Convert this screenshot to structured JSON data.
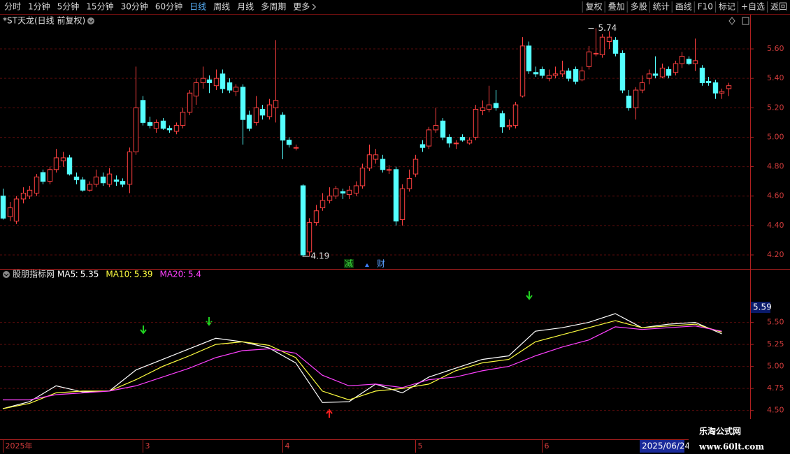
{
  "toolbar": {
    "left": [
      "分时",
      "1分钟",
      "5分钟",
      "15分钟",
      "30分钟",
      "60分钟",
      "日线",
      "周线",
      "月线",
      "多周期",
      "更多"
    ],
    "active": "日线",
    "right": [
      "复权",
      "叠加",
      "多股",
      "统计",
      "画线",
      "F10",
      "标记",
      "+自选",
      "返回"
    ]
  },
  "markers": [
    "减",
    "财"
  ],
  "date_box": "2025/06/24",
  "cursor_value": 5.59,
  "watermark": {
    "title": "乐淘公式网",
    "url": "www.60lt.com"
  },
  "chart_data": [
    {
      "type": "candlestick",
      "title": "*ST天龙(日线 前复权)",
      "up_color": "#ff4040",
      "down_color": "#54ffff",
      "open": [
        4.6,
        4.46,
        4.43,
        4.58,
        4.6,
        4.62,
        4.76,
        4.7,
        4.78,
        4.84,
        4.86,
        4.73,
        4.71,
        4.64,
        4.68,
        4.73,
        4.68,
        4.71,
        4.7,
        4.68,
        4.9,
        5.25,
        5.1,
        5.06,
        5.11,
        5.06,
        5.04,
        5.08,
        5.17,
        5.28,
        5.37,
        5.39,
        5.35,
        5.43,
        5.37,
        5.31,
        5.34,
        5.15,
        5.1,
        5.19,
        5.14,
        5.2,
        5.15,
        4.98,
        4.93,
        4.67,
        4.22,
        4.42,
        4.52,
        4.57,
        4.6,
        4.63,
        4.61,
        4.62,
        4.67,
        4.79,
        4.85,
        4.85,
        4.78,
        4.78,
        4.44,
        4.65,
        4.75,
        4.95,
        4.94,
        5.05,
        5.11,
        5.0,
        4.96,
        5.0,
        4.96,
        5.0,
        5.18,
        5.19,
        5.23,
        5.16,
        5.07,
        5.08,
        5.28,
        5.62,
        5.44,
        5.46,
        5.4,
        5.42,
        5.43,
        5.45,
        5.46,
        5.39,
        5.48,
        5.57,
        5.56,
        5.65,
        5.66,
        5.57,
        5.28,
        5.2,
        5.32,
        5.4,
        5.43,
        5.41,
        5.46,
        5.44,
        5.5,
        5.53,
        5.5,
        5.47,
        5.38,
        5.37,
        5.3,
        5.33
      ],
      "high": [
        4.65,
        4.56,
        4.6,
        4.66,
        4.67,
        4.75,
        4.78,
        4.8,
        4.92,
        4.9,
        4.88,
        4.76,
        4.73,
        4.7,
        4.78,
        4.76,
        4.79,
        4.74,
        4.72,
        4.93,
        5.48,
        5.28,
        5.14,
        5.12,
        5.13,
        5.08,
        5.1,
        5.2,
        5.32,
        5.4,
        5.48,
        5.42,
        5.46,
        5.46,
        5.4,
        5.36,
        5.36,
        5.18,
        5.28,
        5.22,
        5.26,
        5.66,
        5.17,
        5.0,
        4.95,
        4.68,
        4.45,
        4.54,
        4.62,
        4.66,
        4.67,
        4.65,
        4.67,
        4.7,
        4.82,
        4.95,
        4.92,
        4.88,
        4.81,
        4.8,
        4.68,
        4.78,
        4.88,
        4.98,
        5.07,
        5.2,
        5.13,
        5.02,
        4.98,
        5.02,
        5.0,
        5.22,
        5.25,
        5.35,
        5.32,
        5.18,
        5.12,
        5.24,
        5.68,
        5.65,
        5.48,
        5.48,
        5.46,
        5.48,
        5.52,
        5.47,
        5.48,
        5.48,
        5.62,
        5.74,
        5.7,
        5.72,
        5.68,
        5.59,
        5.32,
        5.34,
        5.42,
        5.46,
        5.55,
        5.5,
        5.48,
        5.52,
        5.58,
        5.55,
        5.67,
        5.49,
        5.41,
        5.39,
        5.33,
        5.37
      ],
      "low": [
        4.44,
        4.43,
        4.41,
        4.55,
        4.58,
        4.6,
        4.68,
        4.68,
        4.76,
        4.8,
        4.74,
        4.68,
        4.63,
        4.63,
        4.66,
        4.67,
        4.66,
        4.67,
        4.66,
        4.62,
        4.88,
        5.08,
        5.06,
        5.03,
        5.05,
        5.03,
        5.02,
        5.06,
        5.15,
        5.22,
        5.33,
        5.3,
        5.32,
        5.3,
        5.3,
        5.28,
        4.95,
        5.04,
        5.08,
        5.12,
        5.12,
        5.1,
        4.85,
        4.93,
        4.91,
        4.19,
        4.19,
        4.4,
        4.5,
        4.55,
        4.58,
        4.58,
        4.58,
        4.6,
        4.65,
        4.77,
        4.82,
        4.76,
        4.75,
        4.4,
        4.4,
        4.63,
        4.73,
        4.9,
        4.92,
        5.03,
        4.98,
        4.93,
        4.92,
        4.97,
        4.95,
        4.98,
        5.15,
        5.17,
        5.18,
        5.03,
        5.05,
        5.06,
        5.27,
        5.43,
        5.41,
        5.4,
        5.38,
        5.4,
        5.41,
        5.38,
        5.36,
        5.38,
        5.46,
        5.55,
        5.54,
        5.6,
        5.55,
        5.3,
        5.18,
        5.12,
        5.3,
        5.36,
        5.4,
        5.4,
        5.4,
        5.42,
        5.47,
        5.49,
        5.45,
        5.35,
        5.35,
        5.26,
        5.26,
        5.28
      ],
      "close": [
        4.45,
        4.52,
        4.58,
        4.62,
        4.64,
        4.73,
        4.7,
        4.78,
        4.86,
        4.86,
        4.75,
        4.71,
        4.64,
        4.68,
        4.73,
        4.69,
        4.75,
        4.7,
        4.68,
        4.9,
        5.2,
        5.1,
        5.08,
        5.1,
        5.06,
        5.05,
        5.08,
        5.17,
        5.3,
        5.37,
        5.4,
        5.37,
        5.4,
        5.33,
        5.32,
        5.34,
        5.12,
        5.06,
        5.2,
        5.15,
        5.22,
        5.25,
        4.98,
        4.95,
        4.93,
        4.2,
        4.42,
        4.5,
        4.57,
        4.6,
        4.65,
        4.62,
        4.64,
        4.67,
        4.79,
        4.88,
        4.88,
        4.78,
        4.78,
        4.43,
        4.65,
        4.72,
        4.85,
        4.93,
        5.05,
        5.08,
        5.0,
        4.96,
        4.96,
        4.98,
        4.98,
        5.19,
        5.2,
        5.22,
        5.2,
        5.07,
        5.08,
        5.22,
        5.62,
        5.45,
        5.43,
        5.42,
        5.42,
        5.43,
        5.45,
        5.4,
        5.38,
        5.45,
        5.58,
        5.57,
        5.68,
        5.68,
        5.57,
        5.32,
        5.2,
        5.32,
        5.37,
        5.43,
        5.42,
        5.47,
        5.42,
        5.5,
        5.55,
        5.5,
        5.52,
        5.37,
        5.37,
        5.3,
        5.31,
        5.35
      ],
      "max_label": 5.74,
      "min_label": 4.19,
      "xlim": [
        0,
        109
      ],
      "xticks": [
        {
          "value": 0,
          "label": "2025年"
        },
        {
          "value": 21,
          "label": "3"
        },
        {
          "value": 42,
          "label": "4"
        },
        {
          "value": 62,
          "label": "5"
        },
        {
          "value": 81,
          "label": "6"
        }
      ],
      "ylim": [
        4.105,
        5.828
      ],
      "yticks": [
        {
          "value": 4.2,
          "label": "4.20"
        },
        {
          "value": 4.4,
          "label": "4.40"
        },
        {
          "value": 4.6,
          "label": "4.60"
        },
        {
          "value": 4.8,
          "label": "4.80"
        },
        {
          "value": 5.0,
          "label": "5.00"
        },
        {
          "value": 5.2,
          "label": "5.20"
        },
        {
          "value": 5.4,
          "label": "5.40"
        },
        {
          "value": 5.6,
          "label": "5.60"
        }
      ],
      "grid": true
    },
    {
      "type": "line",
      "title": "股朋指标网",
      "x": [
        0,
        4,
        8,
        12,
        16,
        20,
        24,
        28,
        32,
        36,
        40,
        44,
        48,
        52,
        56,
        60,
        64,
        68,
        72,
        76,
        80,
        84,
        88,
        92,
        96,
        100,
        104,
        108
      ],
      "series": [
        {
          "name": "MA5",
          "current": 5.35,
          "color": "#ffffff",
          "values": [
            4.52,
            4.6,
            4.78,
            4.71,
            4.72,
            4.96,
            5.08,
            5.2,
            5.32,
            5.28,
            5.21,
            5.04,
            4.59,
            4.6,
            4.8,
            4.7,
            4.88,
            4.98,
            5.08,
            5.12,
            5.4,
            5.44,
            5.5,
            5.6,
            5.44,
            5.48,
            5.5,
            5.37
          ]
        },
        {
          "name": "MA10",
          "current": 5.39,
          "color": "#ffff40",
          "values": [
            4.52,
            4.58,
            4.7,
            4.72,
            4.72,
            4.85,
            5.0,
            5.12,
            5.25,
            5.28,
            5.24,
            5.1,
            4.72,
            4.62,
            4.72,
            4.75,
            4.8,
            4.95,
            5.04,
            5.08,
            5.28,
            5.36,
            5.44,
            5.52,
            5.44,
            5.46,
            5.48,
            5.39
          ]
        },
        {
          "name": "MA20",
          "current": 5.4,
          "color": "#ff40ff",
          "values": [
            4.62,
            4.62,
            4.68,
            4.7,
            4.72,
            4.78,
            4.88,
            4.98,
            5.1,
            5.18,
            5.2,
            5.15,
            4.9,
            4.78,
            4.8,
            4.76,
            4.85,
            4.88,
            4.95,
            5.0,
            5.12,
            5.22,
            5.3,
            5.45,
            5.42,
            5.44,
            5.46,
            5.4
          ]
        }
      ],
      "xlim": [
        0,
        109
      ],
      "ylim": [
        4.18,
        6.1
      ],
      "yticks": [
        {
          "value": 4.5,
          "label": "4.50"
        },
        {
          "value": 4.75,
          "label": "4.75"
        },
        {
          "value": 5.0,
          "label": "5.00"
        },
        {
          "value": 5.25,
          "label": "5.25"
        },
        {
          "value": 5.5,
          "label": "5.50"
        }
      ],
      "grid": true
    }
  ]
}
